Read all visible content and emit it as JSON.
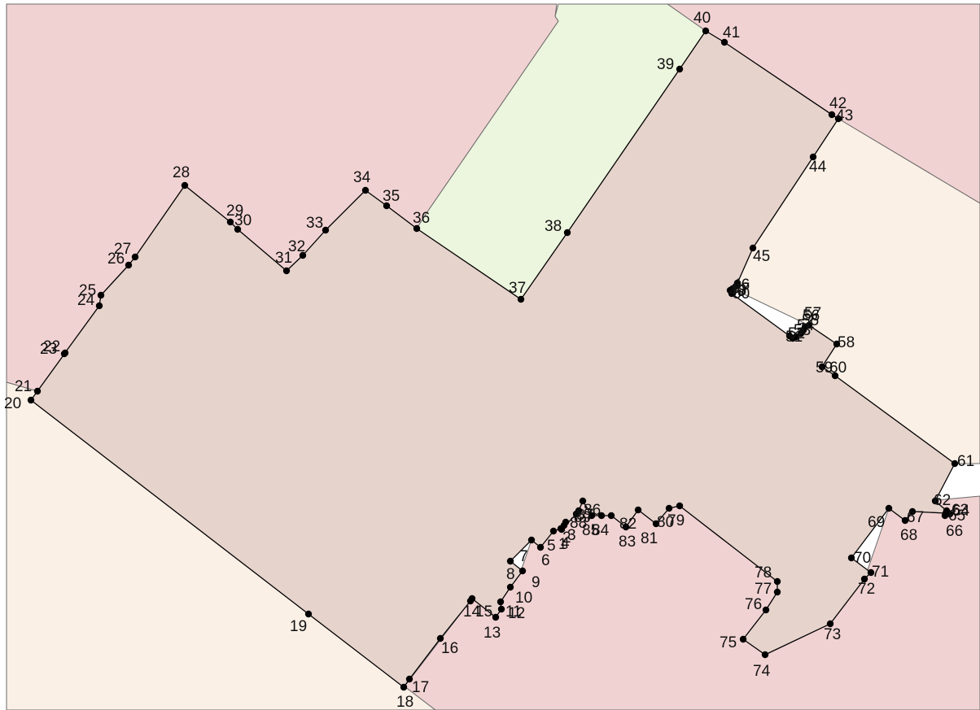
{
  "colors": {
    "background": "#ffffff",
    "parcel_north": "#f1d2d2",
    "parcel_south": "#faf0e6",
    "parcel_green": "#ecf5dd",
    "subject_fill": "#e6d3cc",
    "subject_outline": "#000000",
    "vertex": "#000000"
  },
  "map": {
    "vertex_labels": [
      "1",
      "2",
      "3",
      "4",
      "5",
      "6",
      "7",
      "8",
      "9",
      "10",
      "11",
      "12",
      "13",
      "14",
      "15",
      "16",
      "17",
      "18",
      "19",
      "20",
      "21",
      "22",
      "23",
      "24",
      "25",
      "26",
      "27",
      "28",
      "29",
      "30",
      "31",
      "32",
      "33",
      "34",
      "35",
      "36",
      "37",
      "38",
      "39",
      "40",
      "41",
      "42",
      "43",
      "44",
      "45",
      "46",
      "47",
      "48",
      "49",
      "50",
      "51",
      "52",
      "53",
      "54",
      "55",
      "56",
      "57",
      "58",
      "59",
      "60",
      "61",
      "62",
      "63",
      "64",
      "65",
      "66",
      "67",
      "68",
      "69",
      "70",
      "71",
      "72",
      "73",
      "74",
      "75",
      "76",
      "77",
      "78",
      "79",
      "80",
      "81",
      "82",
      "83",
      "84",
      "85",
      "86",
      "87",
      "88",
      "89"
    ]
  }
}
